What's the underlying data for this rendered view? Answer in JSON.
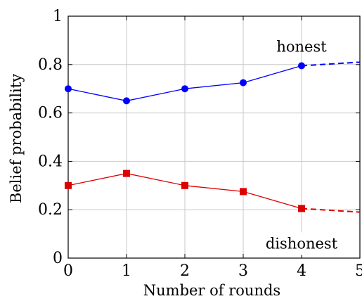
{
  "chart_data": {
    "type": "line",
    "xlabel": "Number of rounds",
    "ylabel": "Belief probability",
    "xlim": [
      0,
      5
    ],
    "ylim": [
      0,
      1
    ],
    "xticks": [
      0,
      1,
      2,
      3,
      4,
      5
    ],
    "xtick_labels": [
      "0",
      "1",
      "2",
      "3",
      "4",
      "5"
    ],
    "yticks": [
      0,
      0.2,
      0.4,
      0.6,
      0.8,
      1
    ],
    "ytick_labels": [
      "0",
      "0.2",
      "0.4",
      "0.6",
      "0.8",
      "1"
    ],
    "grid": true,
    "series": [
      {
        "name": "honest",
        "color": "#0000ff",
        "marker": "circle",
        "x": [
          0,
          1,
          2,
          3,
          4
        ],
        "y": [
          0.7,
          0.65,
          0.7,
          0.725,
          0.795
        ],
        "projection": {
          "x": [
            4,
            5
          ],
          "y": [
            0.795,
            0.81
          ],
          "style": "dashed"
        }
      },
      {
        "name": "dishonest",
        "color": "#dd0000",
        "marker": "square",
        "x": [
          0,
          1,
          2,
          3,
          4
        ],
        "y": [
          0.3,
          0.35,
          0.3,
          0.275,
          0.205
        ],
        "projection": {
          "x": [
            4,
            5
          ],
          "y": [
            0.205,
            0.19
          ],
          "style": "dashed"
        }
      }
    ],
    "annotations": [
      {
        "text": "honest",
        "series": 0
      },
      {
        "text": "dishonest",
        "series": 1
      }
    ]
  }
}
